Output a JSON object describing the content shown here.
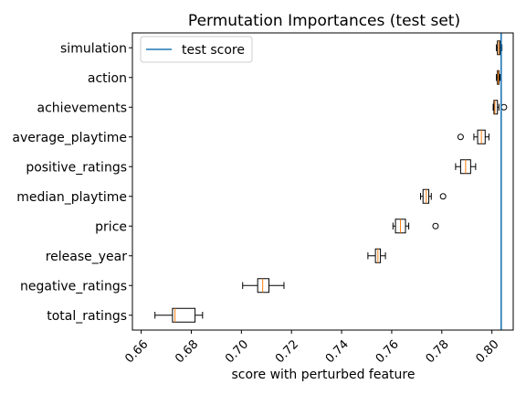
{
  "chart_data": {
    "type": "boxplot",
    "orientation": "horizontal",
    "title": "Permutation Importances (test set)",
    "xlabel": "score with perturbed feature",
    "ylabel": "",
    "xlim": [
      0.6565,
      0.8085
    ],
    "xticks": [
      0.66,
      0.68,
      0.7,
      0.72,
      0.74,
      0.76,
      0.78,
      0.8
    ],
    "xtick_labels": [
      "0.66",
      "0.68",
      "0.70",
      "0.72",
      "0.74",
      "0.76",
      "0.78",
      "0.80"
    ],
    "grid": false,
    "legend": {
      "placement": "upper-left",
      "entries": [
        "test score"
      ]
    },
    "reference_line": {
      "label": "test score",
      "value": 0.8037,
      "color": "#1f77b4"
    },
    "box_color": "#000000",
    "box_fill": "#ffffff",
    "median_color": "#ff7f0e",
    "categories": [
      "total_ratings",
      "negative_ratings",
      "release_year",
      "price",
      "median_playtime",
      "positive_ratings",
      "average_playtime",
      "achievements",
      "action",
      "simulation"
    ],
    "boxes": [
      {
        "label": "total_ratings",
        "whislo": 0.6655,
        "q1": 0.6725,
        "med": 0.6735,
        "q3": 0.6815,
        "whishi": 0.6845,
        "fliers": []
      },
      {
        "label": "negative_ratings",
        "whislo": 0.7005,
        "q1": 0.7065,
        "med": 0.7085,
        "q3": 0.711,
        "whishi": 0.717,
        "fliers": []
      },
      {
        "label": "release_year",
        "whislo": 0.7505,
        "q1": 0.7535,
        "med": 0.7545,
        "q3": 0.7555,
        "whishi": 0.7575,
        "fliers": []
      },
      {
        "label": "price",
        "whislo": 0.7605,
        "q1": 0.7615,
        "med": 0.7635,
        "q3": 0.7655,
        "whishi": 0.7668,
        "fliers": [
          0.7775
        ]
      },
      {
        "label": "median_playtime",
        "whislo": 0.7715,
        "q1": 0.7725,
        "med": 0.7738,
        "q3": 0.7748,
        "whishi": 0.7758,
        "fliers": [
          0.7805
        ]
      },
      {
        "label": "positive_ratings",
        "whislo": 0.7855,
        "q1": 0.7875,
        "med": 0.7895,
        "q3": 0.7915,
        "whishi": 0.7935,
        "fliers": []
      },
      {
        "label": "average_playtime",
        "whislo": 0.7928,
        "q1": 0.7943,
        "med": 0.7958,
        "q3": 0.7973,
        "whishi": 0.7988,
        "fliers": [
          0.7875
        ]
      },
      {
        "label": "achievements",
        "whislo": 0.8005,
        "q1": 0.8008,
        "med": 0.8012,
        "q3": 0.8022,
        "whishi": 0.8028,
        "fliers": [
          0.8048
        ]
      },
      {
        "label": "action",
        "whislo": 0.8018,
        "q1": 0.8022,
        "med": 0.8025,
        "q3": 0.8028,
        "whishi": 0.8032,
        "fliers": []
      },
      {
        "label": "simulation",
        "whislo": 0.8018,
        "q1": 0.8022,
        "med": 0.8027,
        "q3": 0.8032,
        "whishi": 0.804,
        "fliers": []
      }
    ]
  }
}
